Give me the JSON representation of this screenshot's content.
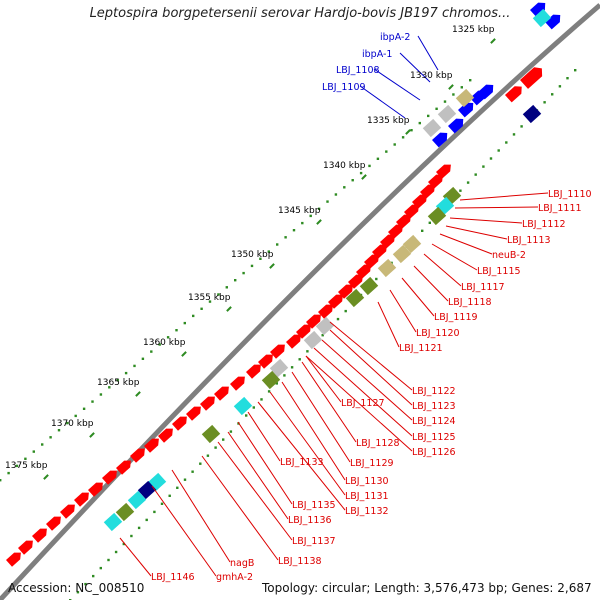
{
  "title": "Leptospira borgpetersenii serovar Hardjo-bovis JB197 chromos...",
  "footer": {
    "accession": "Accession: NC_008510",
    "topology": "Topology: circular; Length: 3,576,473 bp; Genes: 2,687"
  },
  "colors": {
    "backbone": "#7f7f7f",
    "forward_gene": "#ff0000",
    "reverse_gene": "#0000ff",
    "tick": "#2e8b22",
    "label_red": "#dd0000",
    "label_blue": "#0000cc",
    "cog_olive": "#6b8e23",
    "cog_tan": "#c8b878",
    "cog_cyan": "#22dddd",
    "cog_gray": "#c0c0c0",
    "cog_navy": "#000080"
  },
  "scale_labels": [
    "1325 kbp",
    "1330 kbp",
    "1335 kbp",
    "1340 kbp",
    "1345 kbp",
    "1350 kbp",
    "1355 kbp",
    "1360 kbp",
    "1365 kbp",
    "1370 kbp",
    "1375 kbp"
  ],
  "blue_gene_labels": [
    "ibpA-2",
    "ibpA-1",
    "LBJ_1108",
    "LBJ_1109"
  ],
  "red_gene_labels": [
    "LBJ_1110",
    "LBJ_1111",
    "LBJ_1112",
    "LBJ_1113",
    "neuB-2",
    "LBJ_1115",
    "LBJ_1117",
    "LBJ_1118",
    "LBJ_1119",
    "LBJ_1120",
    "LBJ_1121",
    "LBJ_1122",
    "LBJ_1123",
    "LBJ_1124",
    "LBJ_1125",
    "LBJ_1126",
    "LBJ_1127",
    "LBJ_1128",
    "LBJ_1129",
    "LBJ_1130",
    "LBJ_1131",
    "LBJ_1132",
    "LBJ_1133",
    "LBJ_1135",
    "LBJ_1136",
    "LBJ_1137",
    "LBJ_1138",
    "nagB",
    "gmhA-2",
    "LBJ_1146"
  ]
}
